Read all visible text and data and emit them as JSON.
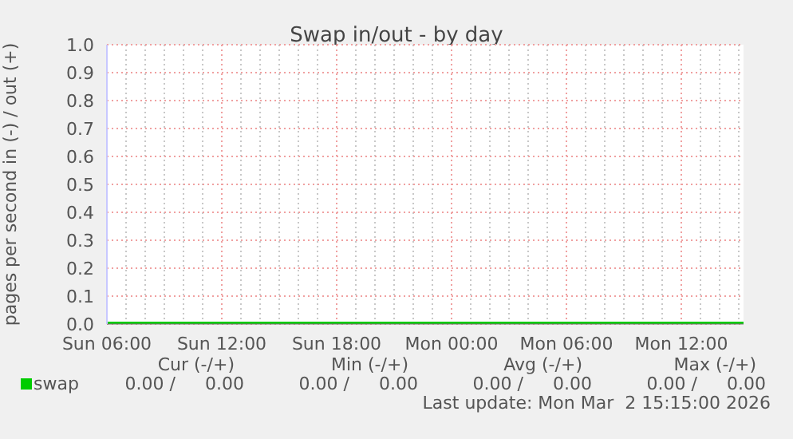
{
  "chart_data": {
    "type": "line",
    "title": "Swap in/out - by day",
    "ylabel": "pages per second in (-) / out (+)",
    "x": [
      "2026-03-01T06:00",
      "2026-03-01T12:00",
      "2026-03-01T18:00",
      "2026-03-02T00:00",
      "2026-03-02T06:00",
      "2026-03-02T12:00",
      "2026-03-02T15:15"
    ],
    "series": [
      {
        "name": "swap",
        "color": "#00cc00",
        "values": [
          0,
          0,
          0,
          0,
          0,
          0,
          0
        ]
      }
    ],
    "xlim": [
      "2026-03-01T06:00",
      "2026-03-02T15:15"
    ],
    "xticks": [
      {
        "value": "2026-03-01T06:00",
        "label": "Sun 06:00"
      },
      {
        "value": "2026-03-01T07:00",
        "label": null
      },
      {
        "value": "2026-03-01T08:00",
        "label": null
      },
      {
        "value": "2026-03-01T09:00",
        "label": null
      },
      {
        "value": "2026-03-01T10:00",
        "label": null
      },
      {
        "value": "2026-03-01T11:00",
        "label": null
      },
      {
        "value": "2026-03-01T12:00",
        "label": "Sun 12:00"
      },
      {
        "value": "2026-03-01T13:00",
        "label": null
      },
      {
        "value": "2026-03-01T14:00",
        "label": null
      },
      {
        "value": "2026-03-01T15:00",
        "label": null
      },
      {
        "value": "2026-03-01T16:00",
        "label": null
      },
      {
        "value": "2026-03-01T17:00",
        "label": null
      },
      {
        "value": "2026-03-01T18:00",
        "label": "Sun 18:00"
      },
      {
        "value": "2026-03-01T19:00",
        "label": null
      },
      {
        "value": "2026-03-01T20:00",
        "label": null
      },
      {
        "value": "2026-03-01T21:00",
        "label": null
      },
      {
        "value": "2026-03-01T22:00",
        "label": null
      },
      {
        "value": "2026-03-01T23:00",
        "label": null
      },
      {
        "value": "2026-03-02T00:00",
        "label": "Mon 00:00"
      },
      {
        "value": "2026-03-02T01:00",
        "label": null
      },
      {
        "value": "2026-03-02T02:00",
        "label": null
      },
      {
        "value": "2026-03-02T03:00",
        "label": null
      },
      {
        "value": "2026-03-02T04:00",
        "label": null
      },
      {
        "value": "2026-03-02T05:00",
        "label": null
      },
      {
        "value": "2026-03-02T06:00",
        "label": "Mon 06:00"
      },
      {
        "value": "2026-03-02T07:00",
        "label": null
      },
      {
        "value": "2026-03-02T08:00",
        "label": null
      },
      {
        "value": "2026-03-02T09:00",
        "label": null
      },
      {
        "value": "2026-03-02T10:00",
        "label": null
      },
      {
        "value": "2026-03-02T11:00",
        "label": null
      },
      {
        "value": "2026-03-02T12:00",
        "label": "Mon 12:00"
      },
      {
        "value": "2026-03-02T13:00",
        "label": null
      },
      {
        "value": "2026-03-02T14:00",
        "label": null
      },
      {
        "value": "2026-03-02T15:00",
        "label": null
      }
    ],
    "ylim": [
      0,
      1
    ],
    "yticks": [
      {
        "value": 0,
        "label": "0.0"
      },
      {
        "value": 0.1,
        "label": "0.1"
      },
      {
        "value": 0.2,
        "label": "0.2"
      },
      {
        "value": 0.3,
        "label": "0.3"
      },
      {
        "value": 0.4,
        "label": "0.4"
      },
      {
        "value": 0.5,
        "label": "0.5"
      },
      {
        "value": 0.6,
        "label": "0.6"
      },
      {
        "value": 0.7,
        "label": "0.7"
      },
      {
        "value": 0.8,
        "label": "0.8"
      },
      {
        "value": 0.9,
        "label": "0.9"
      },
      {
        "value": 1,
        "label": "1.0"
      }
    ],
    "grid": true,
    "legend": "bottom left",
    "marker": "none",
    "line_style": "solid",
    "annotations": [
      "Cur (-/+)",
      "Min (-/+)",
      "Avg (-/+)",
      "Max (-/+)",
      "0.00 /",
      "0.00",
      "0.00 /",
      "0.00",
      "0.00 /",
      "0.00",
      "0.00 /",
      "0.00",
      "Last update: Mon Mar  2 15:15:00 2026"
    ]
  }
}
